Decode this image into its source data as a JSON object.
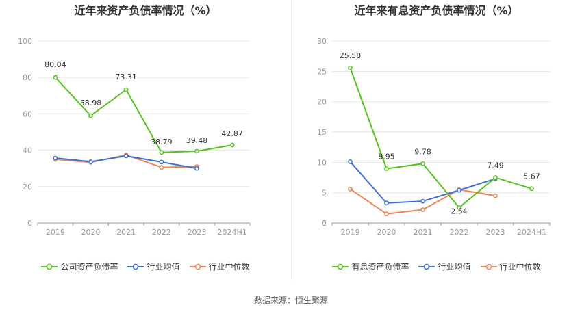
{
  "source_label": "数据来源：恒生聚源",
  "chart_data": [
    {
      "type": "line",
      "title": "近年来资产负债率情况（%）",
      "categories": [
        "2019",
        "2020",
        "2021",
        "2022",
        "2023",
        "2024H1"
      ],
      "ylim": [
        0,
        100
      ],
      "yticks": [
        0,
        20,
        40,
        60,
        80,
        100
      ],
      "series": [
        {
          "name": "公司资产负债率",
          "color": "#52c41a",
          "values": [
            80.04,
            58.98,
            73.31,
            38.79,
            39.48,
            42.87
          ],
          "labels": [
            "80.04",
            "58.98",
            "73.31",
            "38.79",
            "39.48",
            "42.87"
          ]
        },
        {
          "name": "行业均值",
          "color": "#3b6fd9",
          "values": [
            35.7,
            33.7,
            36.9,
            33.5,
            30.0,
            null
          ]
        },
        {
          "name": "行业中位数",
          "color": "#f08457",
          "values": [
            35.0,
            33.3,
            37.4,
            30.6,
            31.0,
            null
          ]
        }
      ]
    },
    {
      "type": "line",
      "title": "近年来有息资产负债率情况（%）",
      "categories": [
        "2019",
        "2020",
        "2021",
        "2022",
        "2023",
        "2024H1"
      ],
      "ylim": [
        0,
        30
      ],
      "yticks": [
        0,
        5,
        10,
        15,
        20,
        25,
        30
      ],
      "series": [
        {
          "name": "有息资产负债率",
          "color": "#52c41a",
          "values": [
            25.58,
            8.95,
            9.78,
            2.54,
            7.49,
            5.67
          ],
          "labels": [
            "25.58",
            "8.95",
            "9.78",
            "2.54",
            "7.49",
            "5.67"
          ]
        },
        {
          "name": "行业均值",
          "color": "#3b6fd9",
          "values": [
            10.1,
            3.3,
            3.6,
            5.4,
            7.3,
            null
          ]
        },
        {
          "name": "行业中位数",
          "color": "#f08457",
          "values": [
            5.6,
            1.5,
            2.2,
            5.5,
            4.5,
            null
          ]
        }
      ]
    }
  ]
}
